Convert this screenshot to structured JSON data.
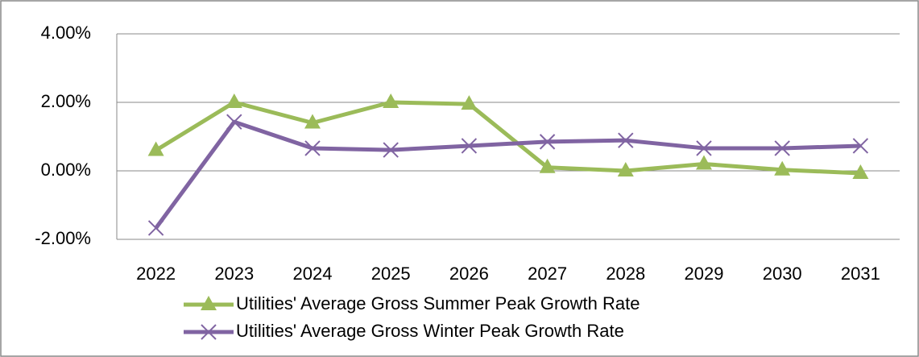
{
  "chart_data": {
    "type": "line",
    "categories": [
      "2022",
      "2023",
      "2024",
      "2025",
      "2026",
      "2027",
      "2028",
      "2029",
      "2030",
      "2031"
    ],
    "series": [
      {
        "name": "Utilities' Average Gross Summer Peak Growth Rate",
        "color": "#9bbb59",
        "marker": "triangle",
        "values": [
          0.6,
          2.0,
          1.4,
          2.0,
          1.95,
          0.1,
          0.0,
          0.2,
          0.03,
          -0.07
        ]
      },
      {
        "name": "Utilities' Average Gross Winter Peak Growth Rate",
        "color": "#8064a2",
        "marker": "x",
        "values": [
          -1.67,
          1.43,
          0.66,
          0.61,
          0.73,
          0.85,
          0.89,
          0.66,
          0.66,
          0.73
        ]
      }
    ],
    "ylim": [
      -2,
      4
    ],
    "yticks": [
      {
        "value": -2,
        "label": "-2.00%"
      },
      {
        "value": 0,
        "label": "0.00%"
      },
      {
        "value": 2,
        "label": "2.00%"
      },
      {
        "value": 4,
        "label": "4.00%"
      }
    ],
    "grid": true,
    "legend": "bottom"
  }
}
